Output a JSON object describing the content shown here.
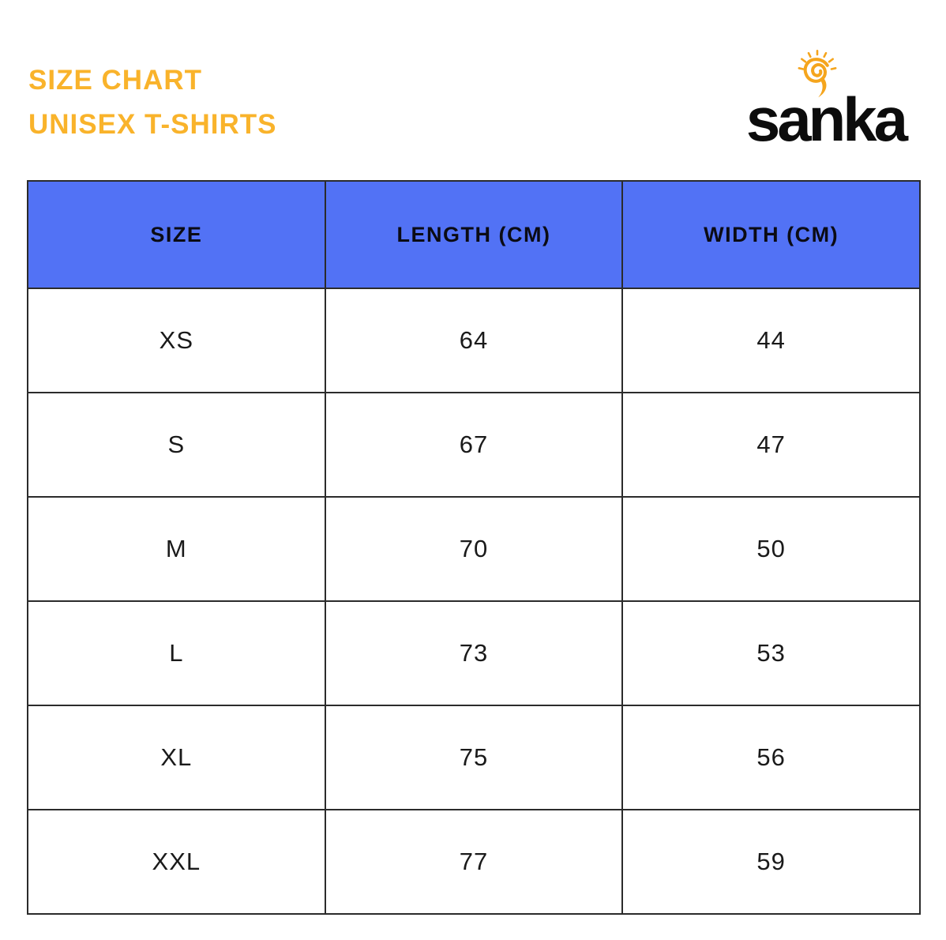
{
  "header": {
    "title_line1": "SIZE CHART",
    "title_line2": "UNISEX T-SHIRTS",
    "brand": "sanka"
  },
  "colors": {
    "title": "#F9B32B",
    "table_header_bg": "#5272F5",
    "table_border": "#2b2b2b",
    "logo_sun": "#F5A51D"
  },
  "chart_data": {
    "type": "table",
    "title": "SIZE CHART UNISEX T-SHIRTS",
    "columns": [
      "SIZE",
      "LENGTH (CM)",
      "WIDTH (CM)"
    ],
    "rows": [
      [
        "XS",
        "64",
        "44"
      ],
      [
        "S",
        "67",
        "47"
      ],
      [
        "M",
        "70",
        "50"
      ],
      [
        "L",
        "73",
        "53"
      ],
      [
        "XL",
        "75",
        "56"
      ],
      [
        "XXL",
        "77",
        "59"
      ]
    ]
  }
}
